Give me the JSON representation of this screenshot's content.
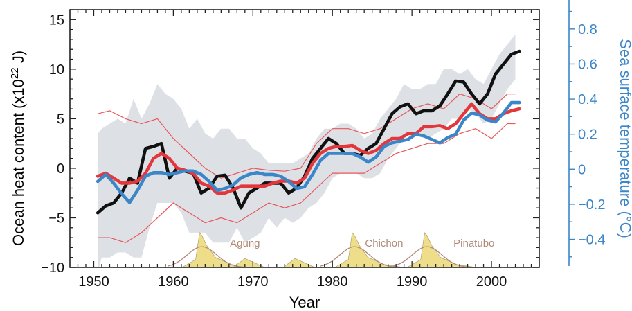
{
  "chart_data": {
    "type": "line",
    "title": "",
    "xlabel": "Year",
    "ylabel": "Ocean heat content (x10^22 J)",
    "ylabel_parts": [
      "Ocean heat content (x10",
      "22",
      " J)"
    ],
    "ylabel_right": "Sea surface temperature (°C)",
    "xlim": [
      1947,
      2006
    ],
    "ylim": [
      -10,
      16
    ],
    "ylim_right": [
      -0.56,
      0.91
    ],
    "grid": false,
    "xticks": [
      1950,
      1960,
      1970,
      1980,
      1990,
      2000
    ],
    "yticks_left": [
      -10,
      -5,
      0,
      5,
      10,
      15
    ],
    "yticks_left_labels": [
      "−10",
      "−5",
      "0",
      "5",
      "10",
      "15"
    ],
    "yticks_right": [
      -0.4,
      -0.2,
      0,
      0.2,
      0.4,
      0.6,
      0.8
    ],
    "yticks_right_labels": [
      "−0.4",
      "−0.2",
      "0",
      "0.2",
      "0.4",
      "0.6",
      "0.8"
    ],
    "colors": {
      "black_series": "#111111",
      "red_series": "#e2373c",
      "blue_series": "#3a86c8",
      "uncertainty_band": "#dde1e6",
      "red_bounds": "#e8575a",
      "volcanic_fill": "#eede8a",
      "volcanic_line": "#b08a78",
      "right_axis": "#3a86c8"
    },
    "uncertainty_band": {
      "x": [
        1950.5,
        1951,
        1952,
        1953,
        1954,
        1955,
        1956,
        1957,
        1958,
        1959,
        1960,
        1961,
        1962,
        1963,
        1964,
        1965,
        1966,
        1967,
        1968,
        1969,
        1970,
        1971,
        1972,
        1973,
        1974,
        1975,
        1976,
        1977,
        1978,
        1979,
        1980,
        1981,
        1982,
        1983,
        1984,
        1985,
        1986,
        1987,
        1988,
        1989,
        1990,
        1991,
        1992,
        1993,
        1994,
        1995,
        1996,
        1997,
        1998,
        1999,
        2000,
        2001,
        2002,
        2003
      ],
      "upper": [
        3.5,
        4,
        4.5,
        5,
        4.5,
        7,
        5,
        6.5,
        8.5,
        7.5,
        7,
        6,
        4,
        5,
        3.5,
        3,
        4,
        4,
        3,
        3,
        2,
        1.5,
        0.5,
        0.5,
        0.5,
        0.5,
        1,
        1.5,
        3,
        4,
        4,
        4.5,
        4.5,
        4,
        3,
        3.5,
        5,
        6,
        7,
        8.5,
        8,
        8,
        8.5,
        8.5,
        10,
        10,
        9.5,
        10,
        9,
        8.5,
        10,
        11.5,
        12.5,
        13.5
      ],
      "lower": [
        -10.5,
        -9,
        -9,
        -8.5,
        -8.5,
        -9,
        -9,
        -6,
        -3.5,
        -3.5,
        -3.5,
        -4.5,
        -6.5,
        -6.5,
        -6.5,
        -7.5,
        -7.5,
        -7.5,
        -6,
        -7.5,
        -7,
        -6.5,
        -5,
        -6,
        -5,
        -5.5,
        -5,
        -4,
        -3.5,
        -2.5,
        -1,
        -0.5,
        -0.5,
        -0.5,
        -1,
        -1,
        -0.5,
        1,
        2,
        3,
        3.5,
        3.5,
        3,
        3.5,
        4,
        5,
        5,
        6,
        5.5,
        4.5,
        5,
        6.5,
        8,
        9
      ]
    },
    "red_bounds": [
      {
        "x": [
          1950.5,
          1952,
          1954,
          1956,
          1958,
          1960,
          1962,
          1964,
          1966,
          1968,
          1970,
          1972,
          1974,
          1976,
          1978,
          1980,
          1982,
          1984,
          1986,
          1988,
          1990,
          1992,
          1994,
          1996,
          1998,
          2000,
          2002,
          2003
        ],
        "values": [
          5.5,
          5.8,
          5,
          4.5,
          5,
          3,
          1.5,
          0,
          -1,
          -0.5,
          0,
          -0.2,
          -0.3,
          0,
          2.5,
          4,
          4,
          3.5,
          4,
          5,
          6,
          6.5,
          6,
          7.5,
          7,
          6,
          7.5,
          7.5
        ]
      },
      {
        "x": [
          1950.5,
          1952,
          1954,
          1956,
          1958,
          1960,
          1962,
          1964,
          1966,
          1968,
          1970,
          1972,
          1974,
          1976,
          1978,
          1980,
          1982,
          1984,
          1986,
          1988,
          1990,
          1992,
          1994,
          1996,
          1998,
          2000,
          2002,
          2003
        ],
        "values": [
          -7,
          -7,
          -7.5,
          -6.5,
          -5,
          -3.5,
          -4.5,
          -5.5,
          -5,
          -5.5,
          -4.5,
          -3.5,
          -4,
          -3.5,
          -2,
          -0.5,
          -0.5,
          -0.5,
          0.5,
          1.5,
          2,
          2.5,
          2.5,
          3.5,
          4,
          3,
          4.5,
          4.5
        ]
      }
    ],
    "series": [
      {
        "color": "#111111",
        "axis": "left",
        "x": [
          1950.5,
          1951.5,
          1952.5,
          1953.5,
          1954.5,
          1955.5,
          1956.5,
          1957.5,
          1958.5,
          1959.5,
          1960.5,
          1961.5,
          1962.5,
          1963.5,
          1964.5,
          1965.5,
          1966.5,
          1967.5,
          1968.5,
          1969.5,
          1970.5,
          1971.5,
          1972.5,
          1973.5,
          1974.5,
          1975.5,
          1976.5,
          1977.5,
          1978.5,
          1979.5,
          1980.5,
          1981.5,
          1982.5,
          1983.5,
          1984.5,
          1985.5,
          1986.5,
          1987.5,
          1988.5,
          1989.5,
          1990.5,
          1991.5,
          1992.5,
          1993.5,
          1994.5,
          1995.5,
          1996.5,
          1997.5,
          1998.5,
          1999.5,
          2000.5,
          2001.5,
          2002.5,
          2003.5
        ],
        "values": [
          -4.5,
          -3.8,
          -3.5,
          -2.5,
          -1,
          -1.5,
          2,
          2.2,
          2.5,
          -1,
          0,
          -0.3,
          -0.5,
          -2.5,
          -2,
          -0.8,
          -0.7,
          -2,
          -4,
          -2.5,
          -2,
          -1.5,
          -1.5,
          -1.5,
          -2.5,
          -2,
          -0.8,
          1,
          2,
          3,
          2.5,
          1.5,
          1.5,
          1.3,
          2,
          2.5,
          4,
          5.5,
          6.2,
          6.5,
          5.5,
          5.8,
          5.8,
          6.3,
          7.5,
          8.8,
          8.7,
          7.5,
          6.5,
          7.5,
          9.5,
          10.5,
          11.5,
          11.8
        ]
      },
      {
        "color": "#e2373c",
        "axis": "left",
        "x": [
          1950.5,
          1951.5,
          1952.5,
          1953.5,
          1954.5,
          1955.5,
          1956.5,
          1957.5,
          1958.5,
          1959.5,
          1960.5,
          1961.5,
          1962.5,
          1963.5,
          1964.5,
          1965.5,
          1966.5,
          1967.5,
          1968.5,
          1969.5,
          1970.5,
          1971.5,
          1972.5,
          1973.5,
          1974.5,
          1975.5,
          1976.5,
          1977.5,
          1978.5,
          1979.5,
          1980.5,
          1981.5,
          1982.5,
          1983.5,
          1984.5,
          1985.5,
          1986.5,
          1987.5,
          1988.5,
          1989.5,
          1990.5,
          1991.5,
          1992.5,
          1993.5,
          1994.5,
          1995.5,
          1996.5,
          1997.5,
          1998.5,
          1999.5,
          2000.5,
          2001.5,
          2002.5,
          2003.5
        ],
        "values": [
          -0.8,
          -0.5,
          -1,
          -1.5,
          -1.5,
          -1.3,
          -0.5,
          1,
          1.5,
          1,
          0,
          -0.2,
          -0.5,
          -1.5,
          -1.8,
          -2.5,
          -2.5,
          -2.2,
          -1.8,
          -1.8,
          -1.8,
          -1.8,
          -1.5,
          -1.3,
          -1.3,
          -1.5,
          -1,
          0.5,
          1.5,
          2,
          2.2,
          2.2,
          2.3,
          1.8,
          1.5,
          1.8,
          2.5,
          3,
          3,
          3.5,
          3.5,
          4.2,
          4.2,
          4.3,
          4,
          4.5,
          5.5,
          6.5,
          5.5,
          5,
          5,
          5.5,
          5.8,
          6
        ]
      },
      {
        "color": "#3a86c8",
        "axis": "right",
        "x": [
          1950.5,
          1951.5,
          1952.5,
          1953.5,
          1954.5,
          1955.5,
          1956.5,
          1957.5,
          1958.5,
          1959.5,
          1960.5,
          1961.5,
          1962.5,
          1963.5,
          1964.5,
          1965.5,
          1966.5,
          1967.5,
          1968.5,
          1969.5,
          1970.5,
          1971.5,
          1972.5,
          1973.5,
          1974.5,
          1975.5,
          1976.5,
          1977.5,
          1978.5,
          1979.5,
          1980.5,
          1981.5,
          1982.5,
          1983.5,
          1984.5,
          1985.5,
          1986.5,
          1987.5,
          1988.5,
          1989.5,
          1990.5,
          1991.5,
          1992.5,
          1993.5,
          1994.5,
          1995.5,
          1996.5,
          1997.5,
          1998.5,
          1999.5,
          2000.5,
          2001.5,
          2002.5,
          2003.5
        ],
        "values": [
          -0.07,
          -0.03,
          -0.08,
          -0.14,
          -0.19,
          -0.12,
          -0.04,
          -0.02,
          -0.02,
          -0.03,
          -0.02,
          -0.01,
          -0.01,
          -0.03,
          -0.07,
          -0.12,
          -0.11,
          -0.09,
          -0.05,
          -0.03,
          -0.02,
          -0.03,
          -0.03,
          -0.04,
          -0.07,
          -0.11,
          -0.1,
          -0.03,
          0.05,
          0.09,
          0.09,
          0.09,
          0.09,
          0.07,
          0.04,
          0.07,
          0.13,
          0.15,
          0.16,
          0.17,
          0.2,
          0.19,
          0.17,
          0.15,
          0.18,
          0.2,
          0.28,
          0.32,
          0.31,
          0.28,
          0.27,
          0.32,
          0.38,
          0.38
        ]
      }
    ],
    "volcanoes": [
      {
        "label": "Agung",
        "peak_year": 1963.3,
        "label_year": 1969
      },
      {
        "label": "Chichon",
        "peak_year": 1982.5,
        "label_year": 1986.5
      },
      {
        "label": "Pinatubo",
        "peak_year": 1991.6,
        "label_year": 1997.8
      }
    ]
  }
}
